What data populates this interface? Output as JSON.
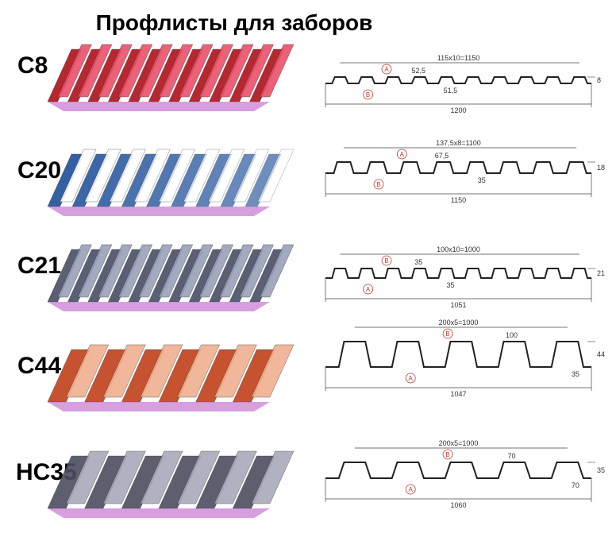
{
  "title": "Профлисты для заборов",
  "rows": [
    {
      "label": "C8",
      "pitch": "115x10=1150",
      "dims": [
        "52,5",
        "51,5"
      ],
      "width": "1200",
      "height": "8",
      "markers": [
        "A",
        "B"
      ]
    },
    {
      "label": "C20",
      "pitch": "137,5x8=1100",
      "dims": [
        "67,5",
        "35"
      ],
      "width": "1150",
      "height": "18",
      "markers": [
        "A",
        "B"
      ]
    },
    {
      "label": "C21",
      "pitch": "100x10=1000",
      "dims": [
        "35",
        "35"
      ],
      "width": "1051",
      "height": "21",
      "markers": [
        "B",
        "A"
      ]
    },
    {
      "label": "C44",
      "pitch": "200x5=1000",
      "dims": [
        "100",
        "35"
      ],
      "width": "1047",
      "height": "44",
      "markers": [
        "B",
        "A"
      ]
    },
    {
      "label": "HC35",
      "pitch": "200x5=1000",
      "dims": [
        "70",
        "70"
      ],
      "width": "1060",
      "height": "35",
      "markers": [
        "B",
        "A"
      ]
    }
  ]
}
